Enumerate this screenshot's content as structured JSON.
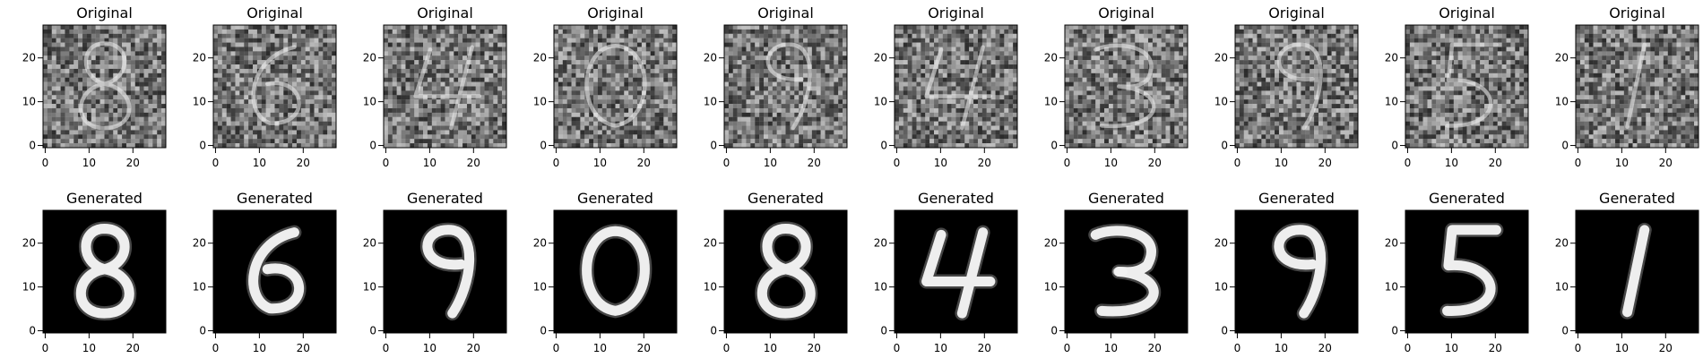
{
  "chart_data": {
    "type": "image_grid",
    "rows": [
      {
        "name": "original",
        "title": "Original",
        "style": "noisy",
        "background": "#7a7a7a",
        "foreground": "#d8d8d8"
      },
      {
        "name": "generated",
        "title": "Generated",
        "style": "clean",
        "background": "#000000",
        "foreground": "#ffffff"
      }
    ],
    "columns": [
      {
        "digit": "8",
        "original_title": "Original",
        "generated_title": "Generated"
      },
      {
        "digit": "6",
        "original_title": "Original",
        "generated_title": "Generated"
      },
      {
        "digit": "4",
        "original_title": "Original",
        "generated_title": "Generated"
      },
      {
        "digit": "0",
        "original_title": "Original",
        "generated_title": "Generated"
      },
      {
        "digit": "9",
        "original_title": "Original",
        "generated_title": "Generated"
      },
      {
        "digit": "4",
        "original_title": "Original",
        "generated_title": "Generated"
      },
      {
        "digit": "3",
        "original_title": "Original",
        "generated_title": "Generated"
      },
      {
        "digit": "9",
        "original_title": "Original",
        "generated_title": "Generated"
      },
      {
        "digit": "5",
        "original_title": "Original",
        "generated_title": "Generated"
      },
      {
        "digit": "1",
        "original_title": "Original",
        "generated_title": "Generated"
      }
    ],
    "generated_digits": [
      "8",
      "6",
      "9",
      "0",
      "8",
      "4",
      "3",
      "9",
      "5",
      "1"
    ],
    "image_size": 28,
    "x_ticks": [
      0,
      10,
      20
    ],
    "y_ticks": [
      0,
      10,
      20
    ],
    "xlim": [
      -0.5,
      27.5
    ],
    "ylim": [
      27.5,
      -0.5
    ],
    "colormap": "gray",
    "grid": false
  }
}
